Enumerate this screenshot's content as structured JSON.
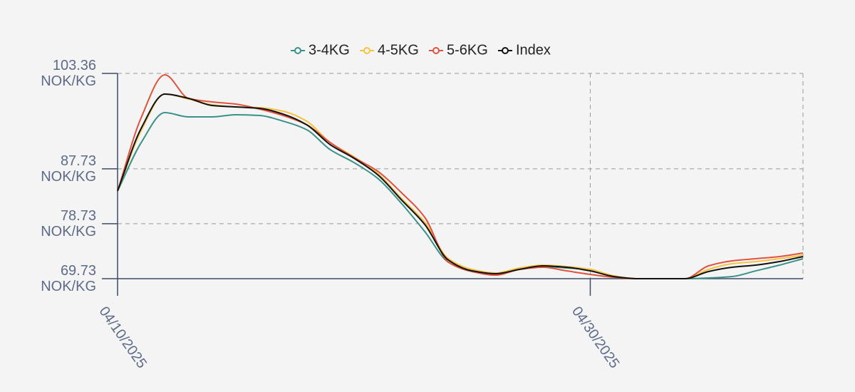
{
  "chart_data": {
    "type": "line",
    "x": [
      "04/10/2025",
      "04/11/2025",
      "04/12/2025",
      "04/13/2025",
      "04/14/2025",
      "04/15/2025",
      "04/16/2025",
      "04/17/2025",
      "04/18/2025",
      "04/19/2025",
      "04/20/2025",
      "04/21/2025",
      "04/22/2025",
      "04/23/2025",
      "04/24/2025",
      "04/25/2025",
      "04/26/2025",
      "04/27/2025",
      "04/28/2025",
      "04/29/2025",
      "04/30/2025",
      "05/01/2025",
      "05/02/2025",
      "05/03/2025",
      "05/04/2025",
      "05/05/2025",
      "05/06/2025",
      "05/07/2025",
      "05/08/2025",
      "05/09/2025"
    ],
    "series": [
      {
        "name": "3-4KG",
        "color": "#3a9188",
        "values": [
          84.09,
          92.03,
          96.94,
          96.24,
          96.24,
          96.59,
          96.47,
          95.54,
          94.13,
          90.86,
          88.76,
          86.19,
          82.11,
          77.44,
          72.42,
          70.9,
          70.43,
          71.25,
          71.72,
          71.48,
          71.25,
          70.08,
          69.73,
          69.73,
          69.73,
          69.85,
          70.08,
          71.01,
          71.95,
          73.0
        ]
      },
      {
        "name": "4-5KG",
        "color": "#f5c342",
        "values": [
          84.09,
          94.0,
          99.97,
          99.16,
          98.22,
          97.87,
          97.75,
          97.17,
          95.54,
          92.03,
          89.7,
          87.01,
          82.93,
          78.95,
          73.0,
          71.25,
          70.66,
          71.48,
          71.95,
          71.72,
          71.25,
          70.2,
          69.73,
          69.73,
          69.73,
          71.25,
          72.18,
          72.53,
          73.0,
          73.58
        ]
      },
      {
        "name": "5-6KG",
        "color": "#e0523f",
        "values": [
          84.09,
          96.12,
          103.13,
          99.27,
          98.69,
          98.34,
          97.52,
          96.47,
          94.95,
          92.03,
          89.58,
          87.36,
          83.86,
          79.77,
          72.42,
          70.9,
          70.31,
          71.25,
          71.6,
          71.01,
          70.43,
          69.96,
          69.73,
          69.73,
          69.73,
          71.83,
          72.65,
          73.0,
          73.35,
          73.93
        ]
      },
      {
        "name": "Index",
        "color": "#111111",
        "values": [
          84.09,
          94.37,
          99.97,
          99.27,
          98.1,
          97.87,
          97.64,
          96.7,
          94.95,
          91.68,
          89.46,
          86.78,
          82.69,
          78.6,
          72.77,
          71.01,
          70.55,
          71.25,
          71.83,
          71.6,
          71.01,
          70.08,
          69.73,
          69.73,
          69.73,
          70.9,
          71.6,
          71.95,
          72.53,
          73.35
        ]
      }
    ],
    "ylim": [
      69.73,
      103.36
    ],
    "yticks": [
      {
        "value": 69.73,
        "label": "69.73 NOK/KG"
      },
      {
        "value": 78.73,
        "label": "78.73 NOK/KG"
      },
      {
        "value": 87.73,
        "label": "87.73 NOK/KG"
      },
      {
        "value": 103.36,
        "label": "103.36 NOK/KG"
      }
    ],
    "xticks": [
      "04/10/2025",
      "04/30/2025"
    ],
    "grid": true,
    "legend_position": "top"
  }
}
